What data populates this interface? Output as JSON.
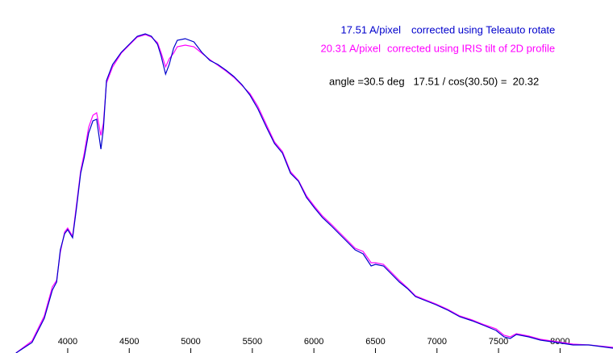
{
  "chart_data": {
    "type": "line",
    "x": [
      3580,
      3710,
      3810,
      3875,
      3910,
      3940,
      3975,
      4000,
      4040,
      4070,
      4105,
      4135,
      4170,
      4205,
      4235,
      4270,
      4290,
      4315,
      4365,
      4435,
      4500,
      4565,
      4630,
      4680,
      4730,
      4760,
      4795,
      4825,
      4860,
      4890,
      4955,
      5025,
      5090,
      5155,
      5220,
      5285,
      5350,
      5415,
      5480,
      5545,
      5615,
      5680,
      5745,
      5810,
      5875,
      5940,
      6005,
      6070,
      6140,
      6205,
      6270,
      6335,
      6400,
      6465,
      6500,
      6565,
      6630,
      6695,
      6760,
      6825,
      6890,
      6990,
      7090,
      7185,
      7285,
      7385,
      7480,
      7545,
      7595,
      7645,
      7745,
      7840,
      7975,
      8105,
      8235,
      8430
    ],
    "series": [
      {
        "name": "17.51 A/pixel",
        "color": "#0000cc",
        "values": [
          0,
          13,
          43,
          78,
          88,
          128,
          148,
          153,
          143,
          178,
          223,
          243,
          273,
          288,
          290,
          253,
          278,
          338,
          358,
          373,
          383,
          393,
          396,
          393,
          383,
          368,
          346,
          358,
          378,
          388,
          390,
          386,
          373,
          363,
          358,
          351,
          343,
          333,
          320,
          303,
          280,
          260,
          248,
          223,
          213,
          193,
          180,
          168,
          158,
          148,
          138,
          128,
          123,
          108,
          110,
          108,
          98,
          88,
          80,
          70,
          66,
          60,
          53,
          45,
          40,
          34,
          28,
          20,
          18,
          23,
          20,
          16,
          13,
          10,
          10,
          6
        ]
      },
      {
        "name": "20.31 A/pixel",
        "color": "#ff00ff",
        "values": [
          0,
          15,
          46,
          82,
          90,
          125,
          150,
          155,
          145,
          182,
          226,
          248,
          280,
          295,
          298,
          270,
          285,
          335,
          355,
          372,
          382,
          392,
          395,
          392,
          385,
          372,
          355,
          365,
          372,
          380,
          382,
          380,
          372,
          364,
          357,
          350,
          342,
          332,
          322,
          306,
          283,
          262,
          250,
          225,
          214,
          195,
          182,
          170,
          160,
          150,
          140,
          130,
          126,
          112,
          112,
          110,
          100,
          90,
          81,
          71,
          67,
          61,
          54,
          46,
          41,
          35,
          30,
          22,
          20,
          24,
          21,
          17,
          14,
          11,
          10,
          7
        ]
      }
    ],
    "annotations": [
      "corrected using Teleauto rotate",
      "corrected using IRIS tilt of 2D profile",
      "angle =30.5 deg   17.51 / cos(30.50) =  20.32"
    ],
    "xlim": [
      3450,
      8430
    ],
    "xticks": [
      4000,
      4500,
      5000,
      5500,
      6000,
      6500,
      7000,
      7500,
      8000
    ],
    "ylim": [
      0,
      438
    ]
  }
}
